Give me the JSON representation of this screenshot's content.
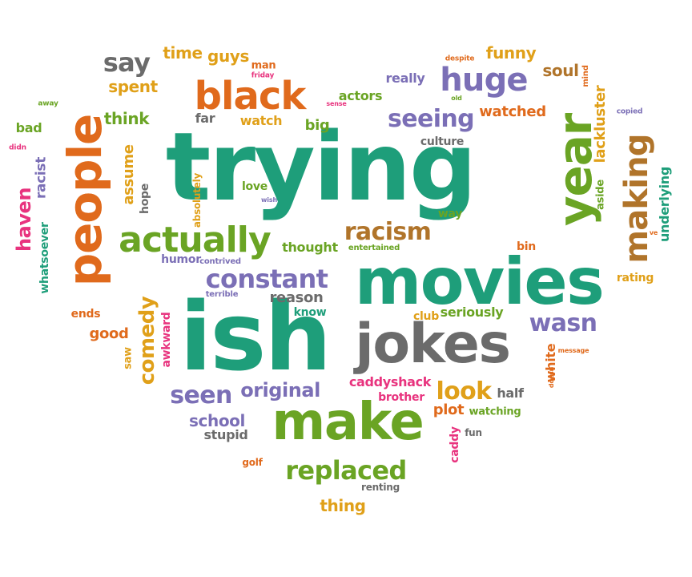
{
  "palette": {
    "teal": "#1e9e7a",
    "orange": "#e06a1c",
    "purple": "#7b6fb6",
    "green": "#6aa424",
    "gold": "#e0a019",
    "gray": "#6b6b6b",
    "pink": "#e8337e",
    "brown": "#b0742a"
  },
  "words": [
    {
      "text": "trying",
      "color": "teal"
    },
    {
      "text": "ish",
      "color": "teal"
    },
    {
      "text": "movies",
      "color": "teal"
    },
    {
      "text": "jokes",
      "color": "gray"
    },
    {
      "text": "make",
      "color": "green"
    },
    {
      "text": "people",
      "color": "orange"
    },
    {
      "text": "year",
      "color": "green"
    },
    {
      "text": "black",
      "color": "orange"
    },
    {
      "text": "actually",
      "color": "green"
    },
    {
      "text": "huge",
      "color": "purple"
    },
    {
      "text": "making",
      "color": "brown"
    },
    {
      "text": "constant",
      "color": "purple"
    },
    {
      "text": "racism",
      "color": "brown"
    },
    {
      "text": "replaced",
      "color": "green"
    },
    {
      "text": "seeing",
      "color": "purple"
    },
    {
      "text": "say",
      "color": "gray"
    },
    {
      "text": "wasn",
      "color": "purple"
    },
    {
      "text": "look",
      "color": "gold"
    },
    {
      "text": "seen",
      "color": "purple"
    },
    {
      "text": "original",
      "color": "purple"
    },
    {
      "text": "comedy",
      "color": "gold"
    },
    {
      "text": "haven",
      "color": "pink"
    },
    {
      "text": "time",
      "color": "gold"
    },
    {
      "text": "guys",
      "color": "gold"
    },
    {
      "text": "funny",
      "color": "gold"
    },
    {
      "text": "soul",
      "color": "brown"
    },
    {
      "text": "spent",
      "color": "gold"
    },
    {
      "text": "think",
      "color": "green"
    },
    {
      "text": "watched",
      "color": "orange"
    },
    {
      "text": "actors",
      "color": "green"
    },
    {
      "text": "really",
      "color": "purple"
    },
    {
      "text": "big",
      "color": "green"
    },
    {
      "text": "watch",
      "color": "gold"
    },
    {
      "text": "far",
      "color": "gray"
    },
    {
      "text": "bad",
      "color": "green"
    },
    {
      "text": "lackluster",
      "color": "gold"
    },
    {
      "text": "underlying",
      "color": "teal"
    },
    {
      "text": "racist",
      "color": "purple"
    },
    {
      "text": "whatsoever",
      "color": "teal"
    },
    {
      "text": "assume",
      "color": "gold"
    },
    {
      "text": "hope",
      "color": "gray"
    },
    {
      "text": "absolutely",
      "color": "gold"
    },
    {
      "text": "love",
      "color": "green"
    },
    {
      "text": "culture",
      "color": "gray"
    },
    {
      "text": "way",
      "color": "green"
    },
    {
      "text": "aside",
      "color": "green"
    },
    {
      "text": "thought",
      "color": "green"
    },
    {
      "text": "entertained",
      "color": "green"
    },
    {
      "text": "bin",
      "color": "orange"
    },
    {
      "text": "humor",
      "color": "purple"
    },
    {
      "text": "contrived",
      "color": "purple"
    },
    {
      "text": "reason",
      "color": "gray"
    },
    {
      "text": "rating",
      "color": "gold"
    },
    {
      "text": "terrible",
      "color": "purple"
    },
    {
      "text": "know",
      "color": "teal"
    },
    {
      "text": "club",
      "color": "gold"
    },
    {
      "text": "seriously",
      "color": "green"
    },
    {
      "text": "good",
      "color": "orange"
    },
    {
      "text": "ends",
      "color": "orange"
    },
    {
      "text": "awkward",
      "color": "pink"
    },
    {
      "text": "saw",
      "color": "gold"
    },
    {
      "text": "white",
      "color": "orange"
    },
    {
      "text": "caddyshack",
      "color": "pink"
    },
    {
      "text": "brother",
      "color": "pink"
    },
    {
      "text": "half",
      "color": "gray"
    },
    {
      "text": "plot",
      "color": "orange"
    },
    {
      "text": "watching",
      "color": "green"
    },
    {
      "text": "school",
      "color": "purple"
    },
    {
      "text": "stupid",
      "color": "gray"
    },
    {
      "text": "caddy",
      "color": "pink"
    },
    {
      "text": "fun",
      "color": "gray"
    },
    {
      "text": "golf",
      "color": "orange"
    },
    {
      "text": "renting",
      "color": "gray"
    },
    {
      "text": "thing",
      "color": "gold"
    },
    {
      "text": "man",
      "color": "orange"
    },
    {
      "text": "friday",
      "color": "pink"
    },
    {
      "text": "away",
      "color": "green"
    },
    {
      "text": "didn",
      "color": "pink"
    },
    {
      "text": "sense",
      "color": "pink"
    },
    {
      "text": "old",
      "color": "green"
    },
    {
      "text": "despite",
      "color": "orange"
    },
    {
      "text": "mind",
      "color": "orange"
    },
    {
      "text": "copied",
      "color": "purple"
    },
    {
      "text": "wish",
      "color": "purple"
    },
    {
      "text": "ve",
      "color": "orange"
    },
    {
      "text": "message",
      "color": "orange"
    },
    {
      "text": "doesn",
      "color": "orange"
    }
  ]
}
